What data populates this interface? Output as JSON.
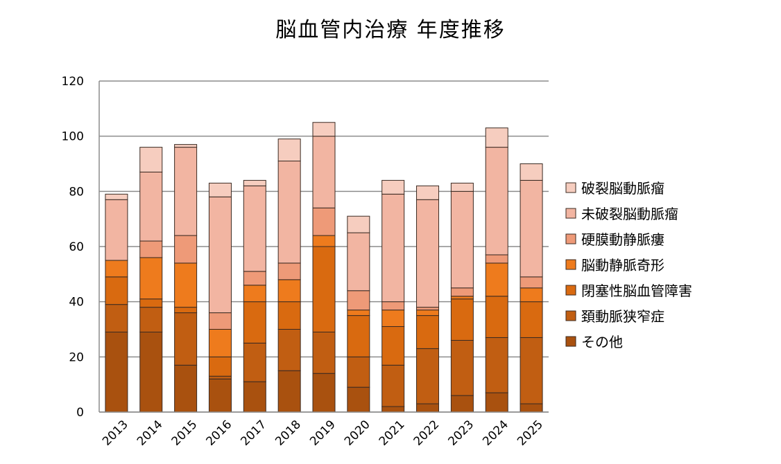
{
  "chart_data": {
    "type": "bar",
    "stacked": true,
    "title": "脳血管内治療 年度推移",
    "xlabel": "",
    "ylabel": "",
    "ylim": [
      0,
      120
    ],
    "yticks": [
      0,
      20,
      40,
      60,
      80,
      100,
      120
    ],
    "grid": true,
    "legend_position": "right",
    "categories": [
      "2013",
      "2014",
      "2015",
      "2016",
      "2017",
      "2018",
      "2019",
      "2020",
      "2021",
      "2022",
      "2023",
      "2024",
      "2025"
    ],
    "series": [
      {
        "name": "その他",
        "color": "#A9510F",
        "values": [
          29,
          29,
          17,
          12,
          11,
          15,
          14,
          9,
          2,
          3,
          6,
          7,
          3
        ]
      },
      {
        "name": "頚動脈狭窄症",
        "color": "#C15E12",
        "values": [
          10,
          9,
          19,
          1,
          14,
          15,
          15,
          11,
          15,
          20,
          20,
          20,
          24
        ]
      },
      {
        "name": "閉塞性脳血管障害",
        "color": "#D96A10",
        "values": [
          10,
          3,
          2,
          7,
          15,
          10,
          31,
          15,
          14,
          12,
          15,
          15,
          13
        ]
      },
      {
        "name": "脳動静脈奇形",
        "color": "#EE7B1D",
        "values": [
          6,
          15,
          16,
          10,
          6,
          8,
          4,
          2,
          6,
          2,
          1,
          12,
          5
        ]
      },
      {
        "name": "硬膜動静脈瘻",
        "color": "#EE9A78",
        "values": [
          0,
          6,
          10,
          6,
          5,
          6,
          10,
          7,
          3,
          1,
          3,
          3,
          4
        ]
      },
      {
        "name": "未破裂脳動脈瘤",
        "color": "#F2B5A2",
        "values": [
          22,
          25,
          32,
          42,
          31,
          37,
          26,
          21,
          39,
          39,
          35,
          39,
          35
        ]
      },
      {
        "name": "破裂脳動脈瘤",
        "color": "#F6CDBF",
        "values": [
          2,
          9,
          1,
          5,
          2,
          8,
          5,
          6,
          5,
          5,
          3,
          7,
          6
        ]
      }
    ]
  }
}
